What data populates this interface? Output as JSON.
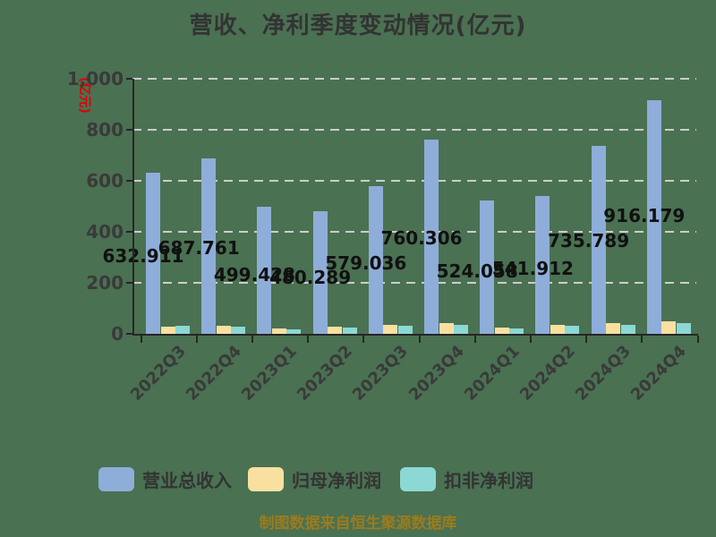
{
  "title": "营收、净利季度变动情况(亿元)",
  "caption": "制图数据来自恒生聚源数据库",
  "y_axis": {
    "unit_label": "(亿元)",
    "tick_labels": [
      "1,000",
      "800",
      "600",
      "400",
      "200",
      "0"
    ],
    "tick_values": [
      1000,
      800,
      600,
      400,
      200,
      0
    ]
  },
  "chart_data": {
    "type": "bar",
    "title": "营收、净利季度变动情况(亿元)",
    "categories": [
      "2022Q3",
      "2022Q4",
      "2023Q1",
      "2023Q2",
      "2023Q3",
      "2023Q4",
      "2024Q1",
      "2024Q2",
      "2024Q3",
      "2024Q4"
    ],
    "series": [
      {
        "name": "营业总收入",
        "color": "#8fadd9",
        "values": [
          632.911,
          687.761,
          499.428,
          480.289,
          579.036,
          760.306,
          524.058,
          541.912,
          735.789,
          916.179
        ],
        "data_labels": [
          "632.911",
          "687.761",
          "499.428",
          "480.289",
          "579.036",
          "760.306",
          "524.058",
          "541.912",
          "735.789",
          "916.179"
        ]
      },
      {
        "name": "归母净利润",
        "color": "#fae0a0",
        "values": [
          29,
          33,
          21,
          27,
          36,
          41,
          24,
          35,
          41,
          48
        ]
      },
      {
        "name": "扣非净利润",
        "color": "#8cd8d4",
        "values": [
          31,
          28,
          18,
          25,
          33,
          35,
          22,
          31,
          36,
          42
        ]
      }
    ],
    "ylabel": "(亿元)",
    "ylim": [
      0,
      1000
    ],
    "grid": "horizontal-dashed",
    "legend_position": "bottom"
  },
  "legend": {
    "items": [
      {
        "label": "营业总收入",
        "color": "#8fadd9"
      },
      {
        "label": "归母净利润",
        "color": "#fae0a0"
      },
      {
        "label": "扣非净利润",
        "color": "#8cd8d4"
      }
    ]
  },
  "colors": {
    "background": "#4a7152",
    "grid": "#cccccc",
    "axis": "#262626",
    "title": "#333333",
    "data_label": "#111111",
    "tick_label": "#3a3a3a",
    "unit_label": "#e00000",
    "caption": "#9c7b1c"
  }
}
